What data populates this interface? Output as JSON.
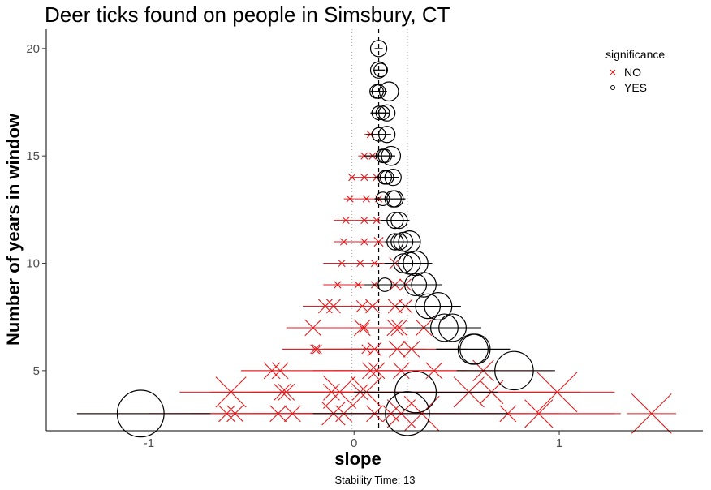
{
  "chart_data": {
    "type": "scatter",
    "title": "Deer ticks found on people in Simsbury, CT",
    "xlabel": "slope",
    "ylabel": "Number of years in window",
    "caption": "Stability Time: 13",
    "xlim": [
      -1.5,
      1.7
    ],
    "ylim": [
      2.2,
      20.9
    ],
    "xticks": [
      -1,
      0,
      1
    ],
    "yticks": [
      5,
      10,
      15,
      20
    ],
    "grid": false,
    "reference_lines": {
      "dashed_x": 0.12,
      "dotted_x": [
        -0.01,
        0.26
      ]
    },
    "legend": {
      "title": "significance",
      "position": "top-right",
      "entries": [
        {
          "label": "NO",
          "symbol": "x",
          "color": "#e41a1c"
        },
        {
          "label": "YES",
          "symbol": "circle",
          "color": "#000000"
        }
      ]
    },
    "series": [
      {
        "name": "NO",
        "color": "#e41a1c",
        "symbol": "x",
        "points": [
          {
            "years": 3,
            "slope": -0.62,
            "lo": -1.35,
            "hi": 0.12,
            "r": 0.3
          },
          {
            "years": 3,
            "slope": -0.58,
            "lo": -1.0,
            "hi": -0.1,
            "r": 0.3
          },
          {
            "years": 3,
            "slope": -0.37,
            "lo": -0.9,
            "hi": 0.1,
            "r": 0.3
          },
          {
            "years": 3,
            "slope": -0.3,
            "lo": -0.8,
            "hi": 0.15,
            "r": 0.3
          },
          {
            "years": 3,
            "slope": -0.1,
            "lo": -0.6,
            "hi": 0.4,
            "r": 0.45
          },
          {
            "years": 3,
            "slope": -0.05,
            "lo": -0.5,
            "hi": 0.4,
            "r": 0.3
          },
          {
            "years": 3,
            "slope": 0.1,
            "lo": -0.3,
            "hi": 0.5,
            "r": 0.3
          },
          {
            "years": 3,
            "slope": 0.18,
            "lo": -0.3,
            "hi": 0.7,
            "r": 0.3
          },
          {
            "years": 3,
            "slope": 0.23,
            "lo": -0.4,
            "hi": 0.85,
            "r": 0.55
          },
          {
            "years": 3,
            "slope": 0.33,
            "lo": -0.3,
            "hi": 1.0,
            "r": 0.7
          },
          {
            "years": 3,
            "slope": 0.75,
            "lo": 0.2,
            "hi": 1.3,
            "r": 0.3
          },
          {
            "years": 3,
            "slope": 0.9,
            "lo": 0.4,
            "hi": 1.27,
            "r": 0.55
          },
          {
            "years": 3,
            "slope": 1.45,
            "lo": 1.33,
            "hi": 1.57,
            "r": 0.8
          },
          {
            "years": 4,
            "slope": -0.6,
            "lo": -0.85,
            "hi": 0.0,
            "r": 0.6
          },
          {
            "years": 4,
            "slope": -0.35,
            "lo": -0.7,
            "hi": 0.1,
            "r": 0.3
          },
          {
            "years": 4,
            "slope": -0.33,
            "lo": -0.6,
            "hi": 0.1,
            "r": 0.3
          },
          {
            "years": 4,
            "slope": -0.11,
            "lo": -0.5,
            "hi": 0.3,
            "r": 0.3
          },
          {
            "years": 4,
            "slope": -0.07,
            "lo": -0.4,
            "hi": 0.3,
            "r": 0.65
          },
          {
            "years": 4,
            "slope": 0.03,
            "lo": -0.3,
            "hi": 0.4,
            "r": 0.3
          },
          {
            "years": 4,
            "slope": 0.06,
            "lo": -0.3,
            "hi": 0.4,
            "r": 0.6
          },
          {
            "years": 4,
            "slope": 0.56,
            "lo": 0.2,
            "hi": 1.0,
            "r": 0.6
          },
          {
            "years": 4,
            "slope": 0.67,
            "lo": 0.3,
            "hi": 1.1,
            "r": 0.45
          },
          {
            "years": 4,
            "slope": 0.99,
            "lo": 0.6,
            "hi": 1.27,
            "r": 0.8
          },
          {
            "years": 5,
            "slope": -0.4,
            "lo": -0.55,
            "hi": 0.0,
            "r": 0.3
          },
          {
            "years": 5,
            "slope": -0.36,
            "lo": -0.55,
            "hi": 0.0,
            "r": 0.3
          },
          {
            "years": 5,
            "slope": 0.08,
            "lo": -0.2,
            "hi": 0.4,
            "r": 0.3
          },
          {
            "years": 5,
            "slope": 0.11,
            "lo": -0.2,
            "hi": 0.4,
            "r": 0.3
          },
          {
            "years": 5,
            "slope": 0.23,
            "lo": -0.1,
            "hi": 0.55,
            "r": 0.3
          },
          {
            "years": 5,
            "slope": 0.39,
            "lo": 0.1,
            "hi": 0.7,
            "r": 0.3
          },
          {
            "years": 5,
            "slope": 0.63,
            "lo": 0.3,
            "hi": 0.97,
            "r": 0.4
          },
          {
            "years": 6,
            "slope": -0.19,
            "lo": -0.35,
            "hi": 0.1,
            "r": 0.15
          },
          {
            "years": 6,
            "slope": -0.18,
            "lo": -0.35,
            "hi": 0.1,
            "r": 0.15
          },
          {
            "years": 6,
            "slope": 0.06,
            "lo": -0.15,
            "hi": 0.3,
            "r": 0.15
          },
          {
            "years": 6,
            "slope": 0.1,
            "lo": -0.15,
            "hi": 0.35,
            "r": 0.25
          },
          {
            "years": 6,
            "slope": 0.21,
            "lo": -0.05,
            "hi": 0.5,
            "r": 0.3
          },
          {
            "years": 6,
            "slope": 0.28,
            "lo": 0.0,
            "hi": 0.55,
            "r": 0.3
          },
          {
            "years": 7,
            "slope": -0.2,
            "lo": -0.33,
            "hi": 0.1,
            "r": 0.3
          },
          {
            "years": 7,
            "slope": 0.04,
            "lo": -0.1,
            "hi": 0.2,
            "r": 0.3
          },
          {
            "years": 7,
            "slope": 0.05,
            "lo": -0.1,
            "hi": 0.25,
            "r": 0.15
          },
          {
            "years": 7,
            "slope": 0.2,
            "lo": 0.0,
            "hi": 0.45,
            "r": 0.3
          },
          {
            "years": 7,
            "slope": 0.22,
            "lo": 0.0,
            "hi": 0.45,
            "r": 0.3
          },
          {
            "years": 7,
            "slope": 0.34,
            "lo": 0.15,
            "hi": 0.55,
            "r": 0.3
          },
          {
            "years": 8,
            "slope": -0.14,
            "lo": -0.25,
            "hi": 0.05,
            "r": 0.25
          },
          {
            "years": 8,
            "slope": -0.1,
            "lo": -0.2,
            "hi": 0.05,
            "r": 0.25
          },
          {
            "years": 8,
            "slope": 0.04,
            "lo": -0.1,
            "hi": 0.2,
            "r": 0.2
          },
          {
            "years": 8,
            "slope": 0.09,
            "lo": -0.05,
            "hi": 0.25,
            "r": 0.25
          },
          {
            "years": 8,
            "slope": 0.2,
            "lo": 0.05,
            "hi": 0.35,
            "r": 0.25
          },
          {
            "years": 8,
            "slope": 0.25,
            "lo": 0.1,
            "hi": 0.4,
            "r": 0.25
          },
          {
            "years": 9,
            "slope": -0.08,
            "lo": -0.15,
            "hi": 0.0,
            "r": 0.1
          },
          {
            "years": 9,
            "slope": 0.02,
            "lo": -0.05,
            "hi": 0.1,
            "r": 0.1
          },
          {
            "years": 9,
            "slope": 0.1,
            "lo": 0.0,
            "hi": 0.2,
            "r": 0.1
          },
          {
            "years": 9,
            "slope": 0.2,
            "lo": 0.1,
            "hi": 0.3,
            "r": 0.2
          },
          {
            "years": 9,
            "slope": 0.25,
            "lo": 0.15,
            "hi": 0.35,
            "r": 0.2
          },
          {
            "years": 10,
            "slope": -0.06,
            "lo": -0.15,
            "hi": 0.0,
            "r": 0.1
          },
          {
            "years": 10,
            "slope": 0.03,
            "lo": -0.05,
            "hi": 0.1,
            "r": 0.1
          },
          {
            "years": 10,
            "slope": 0.1,
            "lo": 0.0,
            "hi": 0.2,
            "r": 0.1
          },
          {
            "years": 10,
            "slope": 0.2,
            "lo": 0.1,
            "hi": 0.3,
            "r": 0.2
          },
          {
            "years": 11,
            "slope": -0.05,
            "lo": -0.1,
            "hi": 0.0,
            "r": 0.1
          },
          {
            "years": 11,
            "slope": 0.05,
            "lo": -0.05,
            "hi": 0.1,
            "r": 0.1
          },
          {
            "years": 11,
            "slope": 0.12,
            "lo": 0.05,
            "hi": 0.2,
            "r": 0.15
          },
          {
            "years": 12,
            "slope": -0.04,
            "lo": -0.1,
            "hi": 0.0,
            "r": 0.1
          },
          {
            "years": 12,
            "slope": 0.05,
            "lo": 0.0,
            "hi": 0.1,
            "r": 0.1
          },
          {
            "years": 12,
            "slope": 0.11,
            "lo": 0.05,
            "hi": 0.15,
            "r": 0.1
          },
          {
            "years": 13,
            "slope": -0.02,
            "lo": -0.05,
            "hi": 0.0,
            "r": 0.1
          },
          {
            "years": 13,
            "slope": 0.06,
            "lo": 0.0,
            "hi": 0.1,
            "r": 0.1
          },
          {
            "years": 13,
            "slope": 0.12,
            "lo": 0.1,
            "hi": 0.15,
            "r": 0.1
          },
          {
            "years": 14,
            "slope": -0.01,
            "lo": -0.02,
            "hi": 0.0,
            "r": 0.1
          },
          {
            "years": 14,
            "slope": 0.05,
            "lo": 0.0,
            "hi": 0.1,
            "r": 0.1
          },
          {
            "years": 14,
            "slope": 0.11,
            "lo": 0.05,
            "hi": 0.15,
            "r": 0.1
          },
          {
            "years": 15,
            "slope": 0.05,
            "lo": 0.02,
            "hi": 0.08,
            "r": 0.1
          },
          {
            "years": 15,
            "slope": 0.09,
            "lo": 0.05,
            "hi": 0.12,
            "r": 0.1
          },
          {
            "years": 16,
            "slope": 0.08,
            "lo": 0.05,
            "hi": 0.1,
            "r": 0.1
          }
        ]
      },
      {
        "name": "YES",
        "color": "#000000",
        "symbol": "circle",
        "points": [
          {
            "years": 3,
            "slope": -1.04,
            "lo": -1.35,
            "hi": -0.7,
            "r": 0.8
          },
          {
            "years": 3,
            "slope": 0.26,
            "lo": -0.2,
            "hi": 0.75,
            "r": 0.75
          },
          {
            "years": 4,
            "slope": 0.3,
            "lo": 0.0,
            "hi": 0.7,
            "r": 0.7
          },
          {
            "years": 5,
            "slope": 0.78,
            "lo": 0.5,
            "hi": 0.98,
            "r": 0.65
          },
          {
            "years": 6,
            "slope": 0.58,
            "lo": 0.4,
            "hi": 0.76,
            "r": 0.5
          },
          {
            "years": 6,
            "slope": 0.59,
            "lo": 0.4,
            "hi": 0.76,
            "r": 0.5
          },
          {
            "years": 7,
            "slope": 0.44,
            "lo": 0.25,
            "hi": 0.62,
            "r": 0.45
          },
          {
            "years": 7,
            "slope": 0.48,
            "lo": 0.3,
            "hi": 0.62,
            "r": 0.45
          },
          {
            "years": 8,
            "slope": 0.36,
            "lo": 0.2,
            "hi": 0.52,
            "r": 0.4
          },
          {
            "years": 8,
            "slope": 0.41,
            "lo": 0.25,
            "hi": 0.52,
            "r": 0.45
          },
          {
            "years": 9,
            "slope": 0.15,
            "lo": 0.05,
            "hi": 0.25,
            "r": 0.2
          },
          {
            "years": 9,
            "slope": 0.3,
            "lo": 0.2,
            "hi": 0.43,
            "r": 0.35
          },
          {
            "years": 9,
            "slope": 0.34,
            "lo": 0.2,
            "hi": 0.43,
            "r": 0.4
          },
          {
            "years": 10,
            "slope": 0.24,
            "lo": 0.15,
            "hi": 0.38,
            "r": 0.3
          },
          {
            "years": 10,
            "slope": 0.27,
            "lo": 0.15,
            "hi": 0.38,
            "r": 0.35
          },
          {
            "years": 10,
            "slope": 0.3,
            "lo": 0.2,
            "hi": 0.38,
            "r": 0.4
          },
          {
            "years": 11,
            "slope": 0.2,
            "lo": 0.15,
            "hi": 0.3,
            "r": 0.25
          },
          {
            "years": 11,
            "slope": 0.22,
            "lo": 0.15,
            "hi": 0.3,
            "r": 0.25
          },
          {
            "years": 11,
            "slope": 0.24,
            "lo": 0.15,
            "hi": 0.32,
            "r": 0.3
          },
          {
            "years": 11,
            "slope": 0.27,
            "lo": 0.15,
            "hi": 0.32,
            "r": 0.35
          },
          {
            "years": 12,
            "slope": 0.2,
            "lo": 0.13,
            "hi": 0.27,
            "r": 0.25
          },
          {
            "years": 12,
            "slope": 0.22,
            "lo": 0.13,
            "hi": 0.27,
            "r": 0.25
          },
          {
            "years": 13,
            "slope": 0.14,
            "lo": 0.1,
            "hi": 0.25,
            "r": 0.2
          },
          {
            "years": 13,
            "slope": 0.19,
            "lo": 0.1,
            "hi": 0.25,
            "r": 0.25
          },
          {
            "years": 13,
            "slope": 0.2,
            "lo": 0.1,
            "hi": 0.25,
            "r": 0.25
          },
          {
            "years": 14,
            "slope": 0.15,
            "lo": 0.1,
            "hi": 0.22,
            "r": 0.2
          },
          {
            "years": 14,
            "slope": 0.16,
            "lo": 0.1,
            "hi": 0.22,
            "r": 0.2
          },
          {
            "years": 14,
            "slope": 0.19,
            "lo": 0.1,
            "hi": 0.22,
            "r": 0.25
          },
          {
            "years": 15,
            "slope": 0.14,
            "lo": 0.05,
            "hi": 0.2,
            "r": 0.2
          },
          {
            "years": 15,
            "slope": 0.15,
            "lo": 0.05,
            "hi": 0.2,
            "r": 0.2
          },
          {
            "years": 15,
            "slope": 0.18,
            "lo": 0.1,
            "hi": 0.2,
            "r": 0.3
          },
          {
            "years": 16,
            "slope": 0.12,
            "lo": 0.06,
            "hi": 0.18,
            "r": 0.2
          },
          {
            "years": 16,
            "slope": 0.16,
            "lo": 0.1,
            "hi": 0.18,
            "r": 0.25
          },
          {
            "years": 17,
            "slope": 0.12,
            "lo": 0.08,
            "hi": 0.17,
            "r": 0.2
          },
          {
            "years": 17,
            "slope": 0.14,
            "lo": 0.08,
            "hi": 0.17,
            "r": 0.2
          },
          {
            "years": 17,
            "slope": 0.16,
            "lo": 0.1,
            "hi": 0.17,
            "r": 0.25
          },
          {
            "years": 18,
            "slope": 0.11,
            "lo": 0.08,
            "hi": 0.16,
            "r": 0.2
          },
          {
            "years": 18,
            "slope": 0.12,
            "lo": 0.08,
            "hi": 0.16,
            "r": 0.2
          },
          {
            "years": 18,
            "slope": 0.17,
            "lo": 0.1,
            "hi": 0.16,
            "r": 0.3
          },
          {
            "years": 19,
            "slope": 0.12,
            "lo": 0.09,
            "hi": 0.15,
            "r": 0.25
          },
          {
            "years": 19,
            "slope": 0.13,
            "lo": 0.09,
            "hi": 0.15,
            "r": 0.2
          },
          {
            "years": 20,
            "slope": 0.12,
            "lo": 0.1,
            "hi": 0.14,
            "r": 0.25
          }
        ]
      }
    ]
  }
}
